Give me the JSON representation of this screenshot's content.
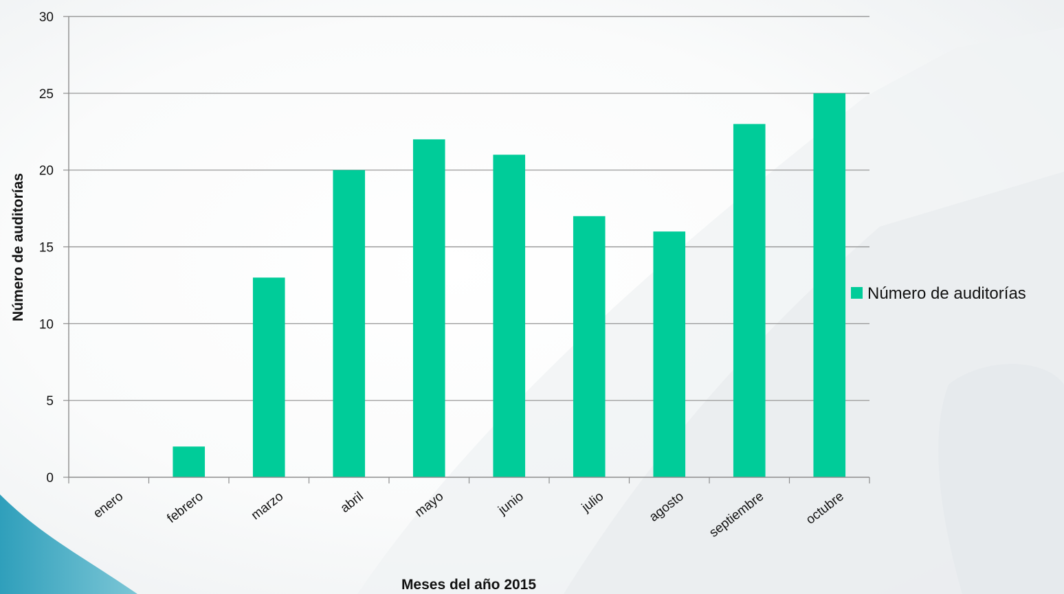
{
  "chart_data": {
    "type": "bar",
    "categories": [
      "enero",
      "febrero",
      "marzo",
      "abril",
      "mayo",
      "junio",
      "julio",
      "agosto",
      "septiembre",
      "octubre"
    ],
    "series": [
      {
        "name": "Número de auditorías",
        "values": [
          0,
          2,
          13,
          20,
          22,
          21,
          17,
          16,
          23,
          25
        ],
        "color": "#00cc99"
      }
    ],
    "title": "",
    "xlabel": "Meses del año 2015",
    "ylabel": "Número de auditorías",
    "ylim": [
      0,
      30
    ],
    "yticks": [
      0,
      5,
      10,
      15,
      20,
      25,
      30
    ],
    "grid": true,
    "legend_position": "right",
    "colors": {
      "bar": "#00cc99",
      "gridline": "#8c8c8c",
      "axis": "#8c8c8c",
      "background_decoration": "#eef1f3",
      "accent_swoosh": "#3aa7c0"
    }
  }
}
